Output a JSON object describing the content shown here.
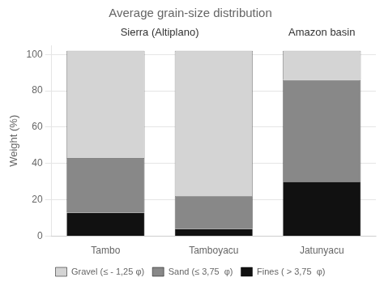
{
  "chart_data": {
    "type": "bar",
    "stacked": true,
    "title": "Average grain-size distribution",
    "ylabel": "Weight (%)",
    "categories": [
      "Tambo",
      "Tamboyacu",
      "Jatunyacu"
    ],
    "groups": [
      {
        "label": "Sierra (Altiplano)",
        "categories": [
          "Tambo",
          "Tamboyacu"
        ]
      },
      {
        "label": "Amazon basin",
        "categories": [
          "Jatunyacu"
        ]
      }
    ],
    "series": [
      {
        "name": "Fines ( > 3,75  φ)",
        "color": "#111111",
        "values": [
          13,
          4,
          30
        ]
      },
      {
        "name": "Sand (≤ 3,75  φ)",
        "color": "#888888",
        "values": [
          30,
          18,
          56
        ]
      },
      {
        "name": "Gravel (≤ - 1,25 φ)",
        "color": "#d4d4d4",
        "values": [
          59,
          80,
          16
        ]
      }
    ],
    "ylim": [
      0,
      105
    ],
    "yticks": [
      0,
      20,
      40,
      60,
      80,
      100
    ],
    "grid": true,
    "legend": "bottom"
  }
}
